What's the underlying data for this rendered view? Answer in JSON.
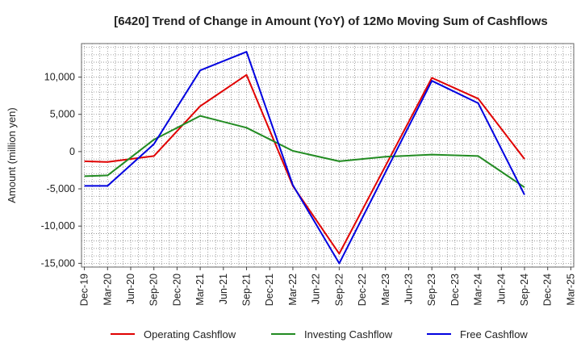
{
  "chart_data": {
    "type": "line",
    "title": "[6420]  Trend of Change in Amount (YoY) of 12Mo Moving Sum of Cashflows",
    "xlabel": "",
    "ylabel": "Amount (million yen)",
    "ylim": [
      -15500,
      14500
    ],
    "yticks": [
      10000,
      5000,
      0,
      -5000,
      -10000,
      -15000
    ],
    "ytick_labels": [
      "10,000",
      "5,000",
      "0",
      "-5,000",
      "-10,000",
      "-15,000"
    ],
    "categories": [
      "Dec-19",
      "Mar-20",
      "Jun-20",
      "Sep-20",
      "Dec-20",
      "Mar-21",
      "Jun-21",
      "Sep-21",
      "Dec-21",
      "Mar-22",
      "Jun-22",
      "Sep-22",
      "Dec-22",
      "Mar-23",
      "Jun-23",
      "Sep-23",
      "Dec-23",
      "Mar-24",
      "Jun-24",
      "Sep-24",
      "Dec-24",
      "Mar-25"
    ],
    "grid": true,
    "legend_position": "bottom",
    "series": [
      {
        "name": "Operating Cashflow",
        "color": "#e00000",
        "points": [
          [
            0,
            -1300
          ],
          [
            1,
            -1400
          ],
          [
            3,
            -600
          ],
          [
            5,
            6100
          ],
          [
            7,
            10300
          ],
          [
            9,
            -4600
          ],
          [
            11,
            -13700
          ],
          [
            15,
            9900
          ],
          [
            17,
            7100
          ],
          [
            19,
            -1000
          ]
        ]
      },
      {
        "name": "Investing Cashflow",
        "color": "#228b22",
        "points": [
          [
            0,
            -3300
          ],
          [
            1,
            -3200
          ],
          [
            3,
            1600
          ],
          [
            5,
            4800
          ],
          [
            7,
            3200
          ],
          [
            9,
            100
          ],
          [
            11,
            -1300
          ],
          [
            13,
            -700
          ],
          [
            15,
            -400
          ],
          [
            17,
            -600
          ],
          [
            19,
            -4800
          ]
        ]
      },
      {
        "name": "Free Cashflow",
        "color": "#0000e0",
        "points": [
          [
            0,
            -4600
          ],
          [
            1,
            -4600
          ],
          [
            3,
            1000
          ],
          [
            5,
            10900
          ],
          [
            7,
            13400
          ],
          [
            9,
            -4500
          ],
          [
            11,
            -15000
          ],
          [
            15,
            9500
          ],
          [
            17,
            6500
          ],
          [
            19,
            -5800
          ]
        ]
      }
    ]
  }
}
